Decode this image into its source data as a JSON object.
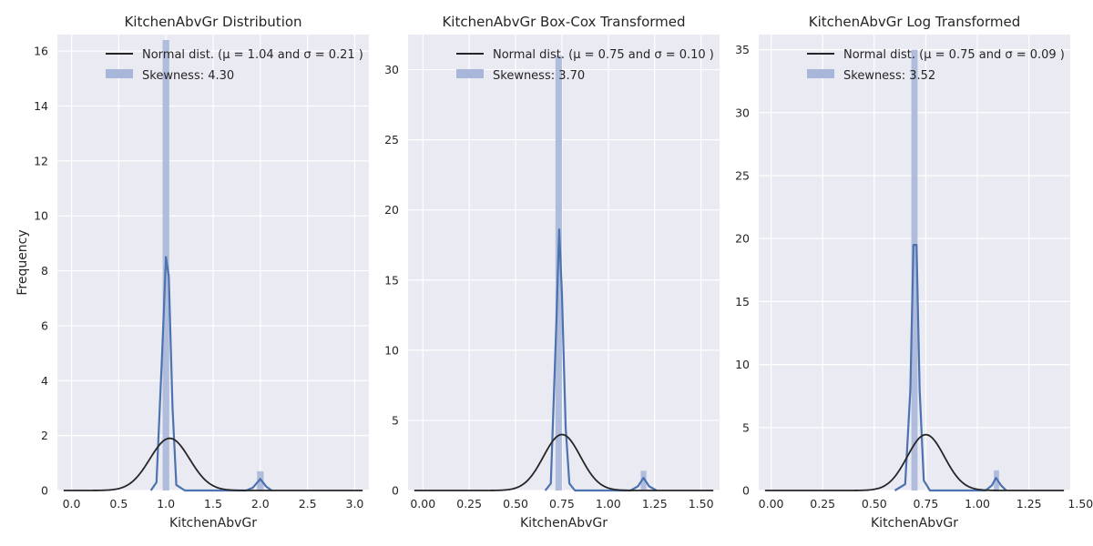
{
  "chart_data": [
    {
      "type": "histogram_with_kde",
      "title": "KitchenAbvGr Distribution",
      "xlabel": "KitchenAbvGr",
      "ylabel": "Frequency",
      "xlim": [
        -0.15,
        3.15
      ],
      "ylim": [
        0,
        16.6
      ],
      "xticks": [
        "0.0",
        "0.5",
        "1.0",
        "1.5",
        "2.0",
        "2.5",
        "3.0"
      ],
      "yticks": [
        "0",
        "2",
        "4",
        "6",
        "8",
        "10",
        "12",
        "14",
        "16"
      ],
      "legend": {
        "normal_label": "Normal dist. (μ =  1.04 and σ =  0.21 )",
        "hist_label": "Skewness: 4.30",
        "placement": "top"
      },
      "normal": {
        "mu": 1.04,
        "sigma": 0.21
      },
      "bars": [
        {
          "x0": 0.965,
          "x1": 1.035,
          "height": 16.4
        },
        {
          "x0": 1.965,
          "x1": 2.035,
          "height": 0.7
        }
      ],
      "kde": [
        [
          0.84,
          0
        ],
        [
          0.9,
          0.3
        ],
        [
          0.96,
          5.0
        ],
        [
          1.0,
          8.5
        ],
        [
          1.03,
          7.8
        ],
        [
          1.07,
          3.0
        ],
        [
          1.11,
          0.2
        ],
        [
          1.2,
          0
        ],
        [
          1.85,
          0
        ],
        [
          1.92,
          0.1
        ],
        [
          2.0,
          0.42
        ],
        [
          2.06,
          0.15
        ],
        [
          2.12,
          0
        ]
      ]
    },
    {
      "type": "histogram_with_kde",
      "title": "KitchenAbvGr Box-Cox Transformed",
      "xlabel": "KitchenAbvGr",
      "ylabel": "",
      "xlim": [
        -0.08,
        1.6
      ],
      "ylim": [
        0,
        32.5
      ],
      "xticks": [
        "0.00",
        "0.25",
        "0.50",
        "0.75",
        "1.00",
        "1.25",
        "1.50"
      ],
      "yticks": [
        "0",
        "5",
        "10",
        "15",
        "20",
        "25",
        "30"
      ],
      "legend": {
        "normal_label": "Normal dist. (μ =  0.75 and σ =  0.10 )",
        "hist_label": "Skewness: 3.70",
        "placement": "top"
      },
      "normal": {
        "mu": 0.75,
        "sigma": 0.1
      },
      "bars": [
        {
          "x0": 0.715,
          "x1": 0.75,
          "height": 31.0
        },
        {
          "x0": 1.175,
          "x1": 1.205,
          "height": 1.4
        }
      ],
      "kde": [
        [
          0.66,
          0
        ],
        [
          0.69,
          0.5
        ],
        [
          0.72,
          12.0
        ],
        [
          0.735,
          18.6
        ],
        [
          0.75,
          14.0
        ],
        [
          0.77,
          4.5
        ],
        [
          0.79,
          0.5
        ],
        [
          0.82,
          0
        ],
        [
          1.12,
          0
        ],
        [
          1.16,
          0.3
        ],
        [
          1.19,
          0.9
        ],
        [
          1.22,
          0.3
        ],
        [
          1.26,
          0
        ]
      ]
    },
    {
      "type": "histogram_with_kde",
      "title": "KitchenAbvGr Log Transformed",
      "xlabel": "KitchenAbvGr",
      "ylabel": "",
      "xlim": [
        -0.06,
        1.45
      ],
      "ylim": [
        0,
        36.2
      ],
      "xticks": [
        "0.00",
        "0.25",
        "0.50",
        "0.75",
        "1.00",
        "1.25",
        "1.50"
      ],
      "yticks": [
        "0",
        "5",
        "10",
        "15",
        "20",
        "25",
        "30",
        "35"
      ],
      "legend": {
        "normal_label": "Normal dist. (μ =  0.75 and σ =  0.09 )",
        "hist_label": "Skewness: 3.52",
        "placement": "top"
      },
      "normal": {
        "mu": 0.75,
        "sigma": 0.09
      },
      "bars": [
        {
          "x0": 0.68,
          "x1": 0.71,
          "height": 35.0
        },
        {
          "x0": 1.08,
          "x1": 1.105,
          "height": 1.6
        }
      ],
      "kde": [
        [
          0.6,
          0
        ],
        [
          0.65,
          0.5
        ],
        [
          0.675,
          8.0
        ],
        [
          0.69,
          19.5
        ],
        [
          0.705,
          19.5
        ],
        [
          0.72,
          8.0
        ],
        [
          0.74,
          0.8
        ],
        [
          0.77,
          0
        ],
        [
          1.04,
          0
        ],
        [
          1.07,
          0.4
        ],
        [
          1.09,
          1.0
        ],
        [
          1.115,
          0.4
        ],
        [
          1.14,
          0
        ]
      ]
    }
  ],
  "colors": {
    "axes_bg": "#eaeaf2",
    "grid": "#ffffff",
    "bar": "#a8b7d9",
    "kde": "#4c72b0",
    "normal": "#262626",
    "text": "#262626"
  }
}
